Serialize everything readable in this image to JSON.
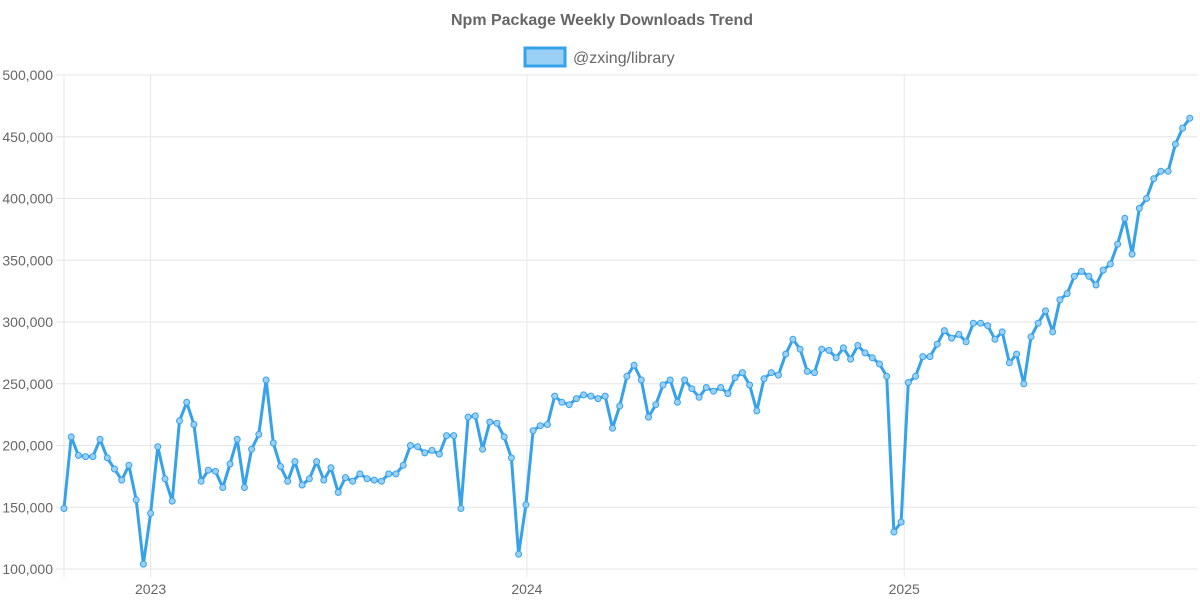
{
  "chart_data": {
    "type": "line",
    "title": "Npm Package Weekly Downloads Trend",
    "xlabel": "",
    "ylabel": "",
    "ylim": [
      100000,
      500000
    ],
    "xlim": [
      "2022-10-09",
      "2025-10-12"
    ],
    "x_ticks": [
      {
        "label": "2023",
        "date": "2023-01-01"
      },
      {
        "label": "2024",
        "date": "2024-01-01"
      },
      {
        "label": "2025",
        "date": "2025-01-01"
      }
    ],
    "y_ticks": [
      {
        "label": "100,000",
        "value": 100000
      },
      {
        "label": "150,000",
        "value": 150000
      },
      {
        "label": "200,000",
        "value": 200000
      },
      {
        "label": "250,000",
        "value": 250000
      },
      {
        "label": "300,000",
        "value": 300000
      },
      {
        "label": "350,000",
        "value": 350000
      },
      {
        "label": "400,000",
        "value": 400000
      },
      {
        "label": "450,000",
        "value": 450000
      },
      {
        "label": "500,000",
        "value": 500000
      }
    ],
    "grid": true,
    "legend_position": "top",
    "series": [
      {
        "name": "@zxing/library",
        "color": "#36a2eb",
        "fill_color": "#9ad0f5",
        "points": [
          {
            "x": "2022-10-09",
            "y": 149000
          },
          {
            "x": "2022-10-16",
            "y": 207000
          },
          {
            "x": "2022-10-23",
            "y": 192000
          },
          {
            "x": "2022-10-30",
            "y": 191000
          },
          {
            "x": "2022-11-06",
            "y": 191000
          },
          {
            "x": "2022-11-13",
            "y": 205000
          },
          {
            "x": "2022-11-20",
            "y": 190000
          },
          {
            "x": "2022-11-27",
            "y": 181000
          },
          {
            "x": "2022-12-04",
            "y": 172000
          },
          {
            "x": "2022-12-11",
            "y": 184000
          },
          {
            "x": "2022-12-18",
            "y": 156000
          },
          {
            "x": "2022-12-25",
            "y": 104000
          },
          {
            "x": "2023-01-01",
            "y": 145000
          },
          {
            "x": "2023-01-08",
            "y": 199000
          },
          {
            "x": "2023-01-15",
            "y": 173000
          },
          {
            "x": "2023-01-22",
            "y": 155000
          },
          {
            "x": "2023-01-29",
            "y": 220000
          },
          {
            "x": "2023-02-05",
            "y": 235000
          },
          {
            "x": "2023-02-12",
            "y": 217000
          },
          {
            "x": "2023-02-19",
            "y": 171000
          },
          {
            "x": "2023-02-26",
            "y": 180000
          },
          {
            "x": "2023-03-05",
            "y": 179000
          },
          {
            "x": "2023-03-12",
            "y": 166000
          },
          {
            "x": "2023-03-19",
            "y": 185000
          },
          {
            "x": "2023-03-26",
            "y": 205000
          },
          {
            "x": "2023-04-02",
            "y": 166000
          },
          {
            "x": "2023-04-09",
            "y": 197000
          },
          {
            "x": "2023-04-16",
            "y": 209000
          },
          {
            "x": "2023-04-23",
            "y": 253000
          },
          {
            "x": "2023-04-30",
            "y": 202000
          },
          {
            "x": "2023-05-07",
            "y": 183000
          },
          {
            "x": "2023-05-14",
            "y": 171000
          },
          {
            "x": "2023-05-21",
            "y": 187000
          },
          {
            "x": "2023-05-28",
            "y": 168000
          },
          {
            "x": "2023-06-04",
            "y": 173000
          },
          {
            "x": "2023-06-11",
            "y": 187000
          },
          {
            "x": "2023-06-18",
            "y": 172000
          },
          {
            "x": "2023-06-25",
            "y": 182000
          },
          {
            "x": "2023-07-02",
            "y": 162000
          },
          {
            "x": "2023-07-09",
            "y": 174000
          },
          {
            "x": "2023-07-16",
            "y": 171000
          },
          {
            "x": "2023-07-23",
            "y": 177000
          },
          {
            "x": "2023-07-30",
            "y": 173000
          },
          {
            "x": "2023-08-06",
            "y": 172000
          },
          {
            "x": "2023-08-13",
            "y": 171000
          },
          {
            "x": "2023-08-20",
            "y": 177000
          },
          {
            "x": "2023-08-27",
            "y": 177000
          },
          {
            "x": "2023-09-03",
            "y": 184000
          },
          {
            "x": "2023-09-10",
            "y": 200000
          },
          {
            "x": "2023-09-17",
            "y": 199000
          },
          {
            "x": "2023-09-24",
            "y": 194000
          },
          {
            "x": "2023-10-01",
            "y": 196000
          },
          {
            "x": "2023-10-08",
            "y": 193000
          },
          {
            "x": "2023-10-15",
            "y": 208000
          },
          {
            "x": "2023-10-22",
            "y": 208000
          },
          {
            "x": "2023-10-29",
            "y": 149000
          },
          {
            "x": "2023-11-05",
            "y": 223000
          },
          {
            "x": "2023-11-12",
            "y": 224000
          },
          {
            "x": "2023-11-19",
            "y": 197000
          },
          {
            "x": "2023-11-26",
            "y": 219000
          },
          {
            "x": "2023-12-03",
            "y": 218000
          },
          {
            "x": "2023-12-10",
            "y": 207000
          },
          {
            "x": "2023-12-17",
            "y": 190000
          },
          {
            "x": "2023-12-24",
            "y": 112000
          },
          {
            "x": "2023-12-31",
            "y": 152000
          },
          {
            "x": "2024-01-07",
            "y": 212000
          },
          {
            "x": "2024-01-14",
            "y": 216000
          },
          {
            "x": "2024-01-21",
            "y": 217000
          },
          {
            "x": "2024-01-28",
            "y": 240000
          },
          {
            "x": "2024-02-04",
            "y": 235000
          },
          {
            "x": "2024-02-11",
            "y": 233000
          },
          {
            "x": "2024-02-18",
            "y": 238000
          },
          {
            "x": "2024-02-25",
            "y": 241000
          },
          {
            "x": "2024-03-03",
            "y": 240000
          },
          {
            "x": "2024-03-10",
            "y": 238000
          },
          {
            "x": "2024-03-17",
            "y": 240000
          },
          {
            "x": "2024-03-24",
            "y": 214000
          },
          {
            "x": "2024-03-31",
            "y": 232000
          },
          {
            "x": "2024-04-07",
            "y": 256000
          },
          {
            "x": "2024-04-14",
            "y": 265000
          },
          {
            "x": "2024-04-21",
            "y": 253000
          },
          {
            "x": "2024-04-28",
            "y": 223000
          },
          {
            "x": "2024-05-05",
            "y": 233000
          },
          {
            "x": "2024-05-12",
            "y": 249000
          },
          {
            "x": "2024-05-19",
            "y": 253000
          },
          {
            "x": "2024-05-26",
            "y": 235000
          },
          {
            "x": "2024-06-02",
            "y": 253000
          },
          {
            "x": "2024-06-09",
            "y": 246000
          },
          {
            "x": "2024-06-16",
            "y": 239000
          },
          {
            "x": "2024-06-23",
            "y": 247000
          },
          {
            "x": "2024-06-30",
            "y": 244000
          },
          {
            "x": "2024-07-07",
            "y": 247000
          },
          {
            "x": "2024-07-14",
            "y": 242000
          },
          {
            "x": "2024-07-21",
            "y": 255000
          },
          {
            "x": "2024-07-28",
            "y": 259000
          },
          {
            "x": "2024-08-04",
            "y": 249000
          },
          {
            "x": "2024-08-11",
            "y": 228000
          },
          {
            "x": "2024-08-18",
            "y": 254000
          },
          {
            "x": "2024-08-25",
            "y": 259000
          },
          {
            "x": "2024-09-01",
            "y": 257000
          },
          {
            "x": "2024-09-08",
            "y": 274000
          },
          {
            "x": "2024-09-15",
            "y": 286000
          },
          {
            "x": "2024-09-22",
            "y": 278000
          },
          {
            "x": "2024-09-29",
            "y": 260000
          },
          {
            "x": "2024-10-06",
            "y": 259000
          },
          {
            "x": "2024-10-13",
            "y": 278000
          },
          {
            "x": "2024-10-20",
            "y": 277000
          },
          {
            "x": "2024-10-27",
            "y": 271000
          },
          {
            "x": "2024-11-03",
            "y": 279000
          },
          {
            "x": "2024-11-10",
            "y": 270000
          },
          {
            "x": "2024-11-17",
            "y": 281000
          },
          {
            "x": "2024-11-24",
            "y": 275000
          },
          {
            "x": "2024-12-01",
            "y": 271000
          },
          {
            "x": "2024-12-08",
            "y": 266000
          },
          {
            "x": "2024-12-15",
            "y": 256000
          },
          {
            "x": "2024-12-22",
            "y": 130000
          },
          {
            "x": "2024-12-29",
            "y": 138000
          },
          {
            "x": "2025-01-05",
            "y": 251000
          },
          {
            "x": "2025-01-12",
            "y": 256000
          },
          {
            "x": "2025-01-19",
            "y": 272000
          },
          {
            "x": "2025-01-26",
            "y": 272000
          },
          {
            "x": "2025-02-02",
            "y": 282000
          },
          {
            "x": "2025-02-09",
            "y": 293000
          },
          {
            "x": "2025-02-16",
            "y": 287000
          },
          {
            "x": "2025-02-23",
            "y": 290000
          },
          {
            "x": "2025-03-02",
            "y": 284000
          },
          {
            "x": "2025-03-09",
            "y": 299000
          },
          {
            "x": "2025-03-16",
            "y": 299000
          },
          {
            "x": "2025-03-23",
            "y": 297000
          },
          {
            "x": "2025-03-30",
            "y": 286000
          },
          {
            "x": "2025-04-06",
            "y": 292000
          },
          {
            "x": "2025-04-13",
            "y": 267000
          },
          {
            "x": "2025-04-20",
            "y": 274000
          },
          {
            "x": "2025-04-27",
            "y": 250000
          },
          {
            "x": "2025-05-04",
            "y": 288000
          },
          {
            "x": "2025-05-11",
            "y": 299000
          },
          {
            "x": "2025-05-18",
            "y": 309000
          },
          {
            "x": "2025-05-25",
            "y": 292000
          },
          {
            "x": "2025-06-01",
            "y": 318000
          },
          {
            "x": "2025-06-08",
            "y": 323000
          },
          {
            "x": "2025-06-15",
            "y": 337000
          },
          {
            "x": "2025-06-22",
            "y": 341000
          },
          {
            "x": "2025-06-29",
            "y": 337000
          },
          {
            "x": "2025-07-06",
            "y": 330000
          },
          {
            "x": "2025-07-13",
            "y": 342000
          },
          {
            "x": "2025-07-20",
            "y": 347000
          },
          {
            "x": "2025-07-27",
            "y": 363000
          },
          {
            "x": "2025-08-03",
            "y": 384000
          },
          {
            "x": "2025-08-10",
            "y": 355000
          },
          {
            "x": "2025-08-17",
            "y": 392000
          },
          {
            "x": "2025-08-24",
            "y": 400000
          },
          {
            "x": "2025-08-31",
            "y": 416000
          },
          {
            "x": "2025-09-07",
            "y": 422000
          },
          {
            "x": "2025-09-14",
            "y": 422000
          },
          {
            "x": "2025-09-21",
            "y": 444000
          },
          {
            "x": "2025-09-28",
            "y": 457000
          },
          {
            "x": "2025-10-05",
            "y": 465000
          }
        ]
      }
    ]
  }
}
